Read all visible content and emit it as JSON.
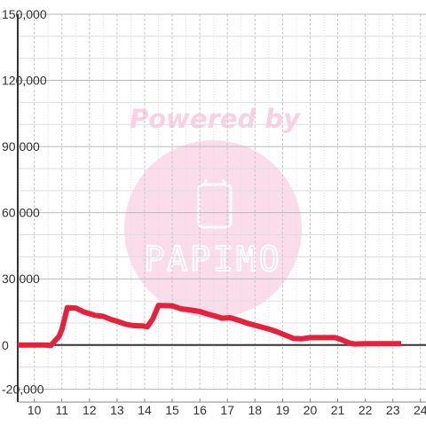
{
  "chart_data": {
    "type": "line",
    "xlabel": "",
    "ylabel": "",
    "xlim": [
      9.4,
      24.2
    ],
    "ylim": [
      -21000,
      150000
    ],
    "grid": true,
    "x_ticks": [
      "10",
      "11",
      "12",
      "13",
      "14",
      "15",
      "16",
      "17",
      "18",
      "19",
      "20",
      "21",
      "22",
      "23",
      "24"
    ],
    "y_ticks": [
      "-20,000",
      "0",
      "30,000",
      "60,000",
      "90,000",
      "120,000",
      "150,000"
    ],
    "series": [
      {
        "color": "#e8213a",
        "points": [
          [
            9.4,
            0
          ],
          [
            10.4,
            0
          ],
          [
            10.6,
            -200
          ],
          [
            10.9,
            4000
          ],
          [
            11.0,
            7000
          ],
          [
            11.2,
            17000
          ],
          [
            11.5,
            16800
          ],
          [
            11.8,
            15000
          ],
          [
            12.2,
            13500
          ],
          [
            12.5,
            13000
          ],
          [
            12.8,
            11500
          ],
          [
            13.0,
            10800
          ],
          [
            13.3,
            9500
          ],
          [
            13.6,
            8800
          ],
          [
            13.9,
            8700
          ],
          [
            14.1,
            8300
          ],
          [
            14.3,
            12000
          ],
          [
            14.5,
            18000
          ],
          [
            15.0,
            17800
          ],
          [
            15.3,
            16500
          ],
          [
            15.7,
            15800
          ],
          [
            16.0,
            15200
          ],
          [
            16.3,
            14000
          ],
          [
            16.6,
            13000
          ],
          [
            16.8,
            12200
          ],
          [
            17.1,
            12400
          ],
          [
            17.4,
            11300
          ],
          [
            17.7,
            10000
          ],
          [
            18.1,
            8600
          ],
          [
            18.5,
            7300
          ],
          [
            18.8,
            6000
          ],
          [
            19.1,
            4500
          ],
          [
            19.4,
            3000
          ],
          [
            19.7,
            2800
          ],
          [
            20.0,
            3400
          ],
          [
            20.4,
            3400
          ],
          [
            20.9,
            3400
          ],
          [
            21.1,
            2600
          ],
          [
            21.4,
            1000
          ],
          [
            21.6,
            500
          ],
          [
            22.0,
            600
          ],
          [
            22.5,
            600
          ],
          [
            23.0,
            600
          ],
          [
            23.3,
            600
          ]
        ]
      }
    ]
  },
  "watermark": {
    "text": "Powered by",
    "logo_text": "PAPIMO",
    "color": "#f9c8e0"
  },
  "colors": {
    "line": "#e8213a",
    "grid": "#c8c8c8",
    "axis": "#333333",
    "background": "#ffffff"
  }
}
